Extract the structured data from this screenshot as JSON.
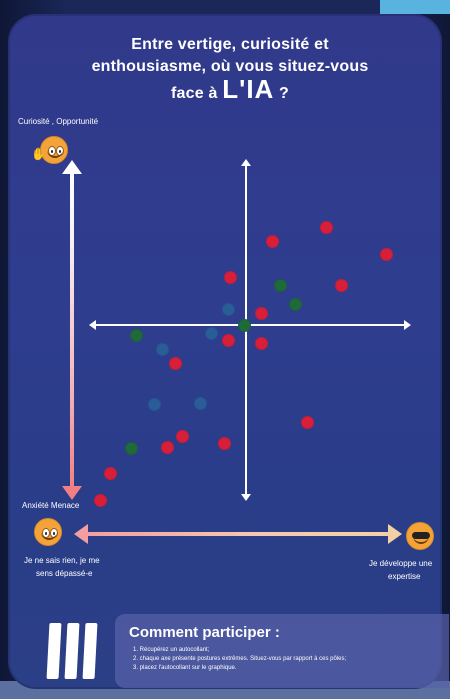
{
  "title": {
    "line1": "Entre vertige, curiosité et",
    "line2": "enthousiasme, où vous situez-vous",
    "line3_prefix": "face à",
    "line3_accent": "L'IA",
    "line3_suffix": "?"
  },
  "labels": {
    "top_left": "Curiosité , Opportunité",
    "bottom_left_top": "Anxiété Menace",
    "bottom_left_bottom_1": "Je ne sais rien, je me",
    "bottom_left_bottom_2": "sens dépassé-e",
    "bottom_right_1": "Je développe une",
    "bottom_right_2": "expertise"
  },
  "instructions": {
    "heading": "Comment participer :",
    "line1": "1. Récupérez un autocollant;",
    "line2": "2. chaque axe présente postures extrêmes. Situez-vous par rapport à ces pôles;",
    "line3": "3. placez l'autocollant sur le graphique."
  },
  "colors": {
    "red_dot": "#d71f3a",
    "green_dot": "#1f6a3a",
    "blue_dot": "#2a5d98"
  },
  "icons": {
    "top_face": "thinking-face-icon",
    "bottom_left_face": "anxious-face-icon",
    "bottom_right_face": "sunglasses-face-icon"
  }
}
